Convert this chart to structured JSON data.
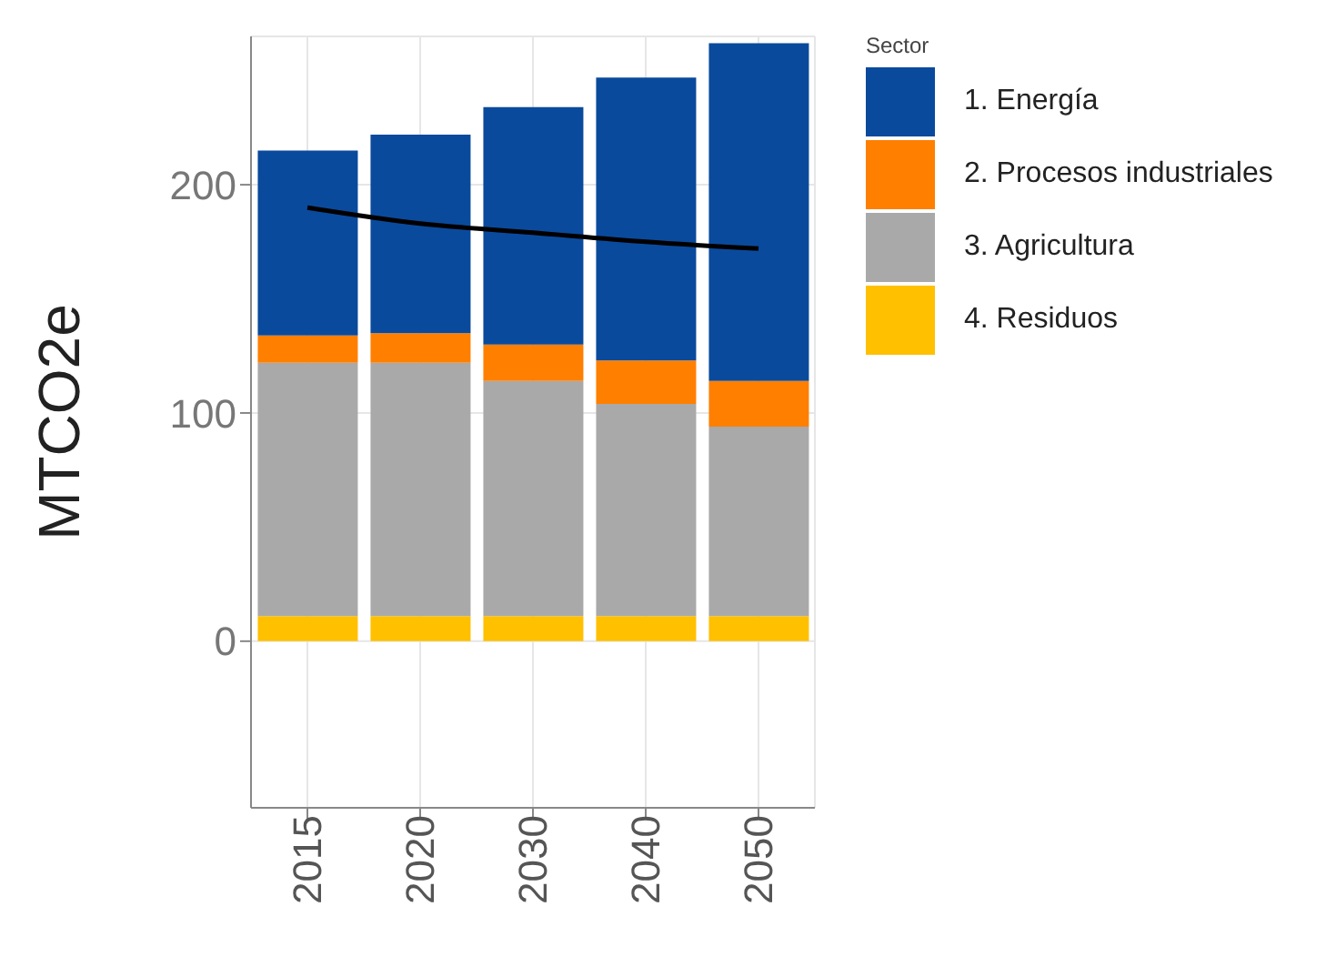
{
  "chart_data": {
    "type": "bar",
    "stacked": true,
    "ylabel": "MTCO2e",
    "legend_title": "Sector",
    "legend": "right",
    "grid": true,
    "categories": [
      "2015",
      "2020",
      "2030",
      "2040",
      "2050"
    ],
    "ylim": [
      -73,
      265
    ],
    "yticks": [
      0,
      100,
      200
    ],
    "series": [
      {
        "name": "4. Residuos",
        "color": "#ffc000",
        "values": [
          11,
          11,
          11,
          11,
          11
        ]
      },
      {
        "name": "3. Agricultura",
        "color": "#a9a9a9",
        "values": [
          111,
          111,
          103,
          93,
          83
        ]
      },
      {
        "name": "2. Procesos industriales",
        "color": "#ff7f00",
        "values": [
          12,
          13,
          16,
          19,
          20
        ]
      },
      {
        "name": "1. Energía",
        "color": "#0a4a9c",
        "values": [
          81,
          87,
          104,
          124,
          148
        ]
      },
      {
        "type": "line",
        "color": "#000000",
        "values": [
          190,
          183,
          179,
          175,
          172
        ]
      }
    ]
  }
}
